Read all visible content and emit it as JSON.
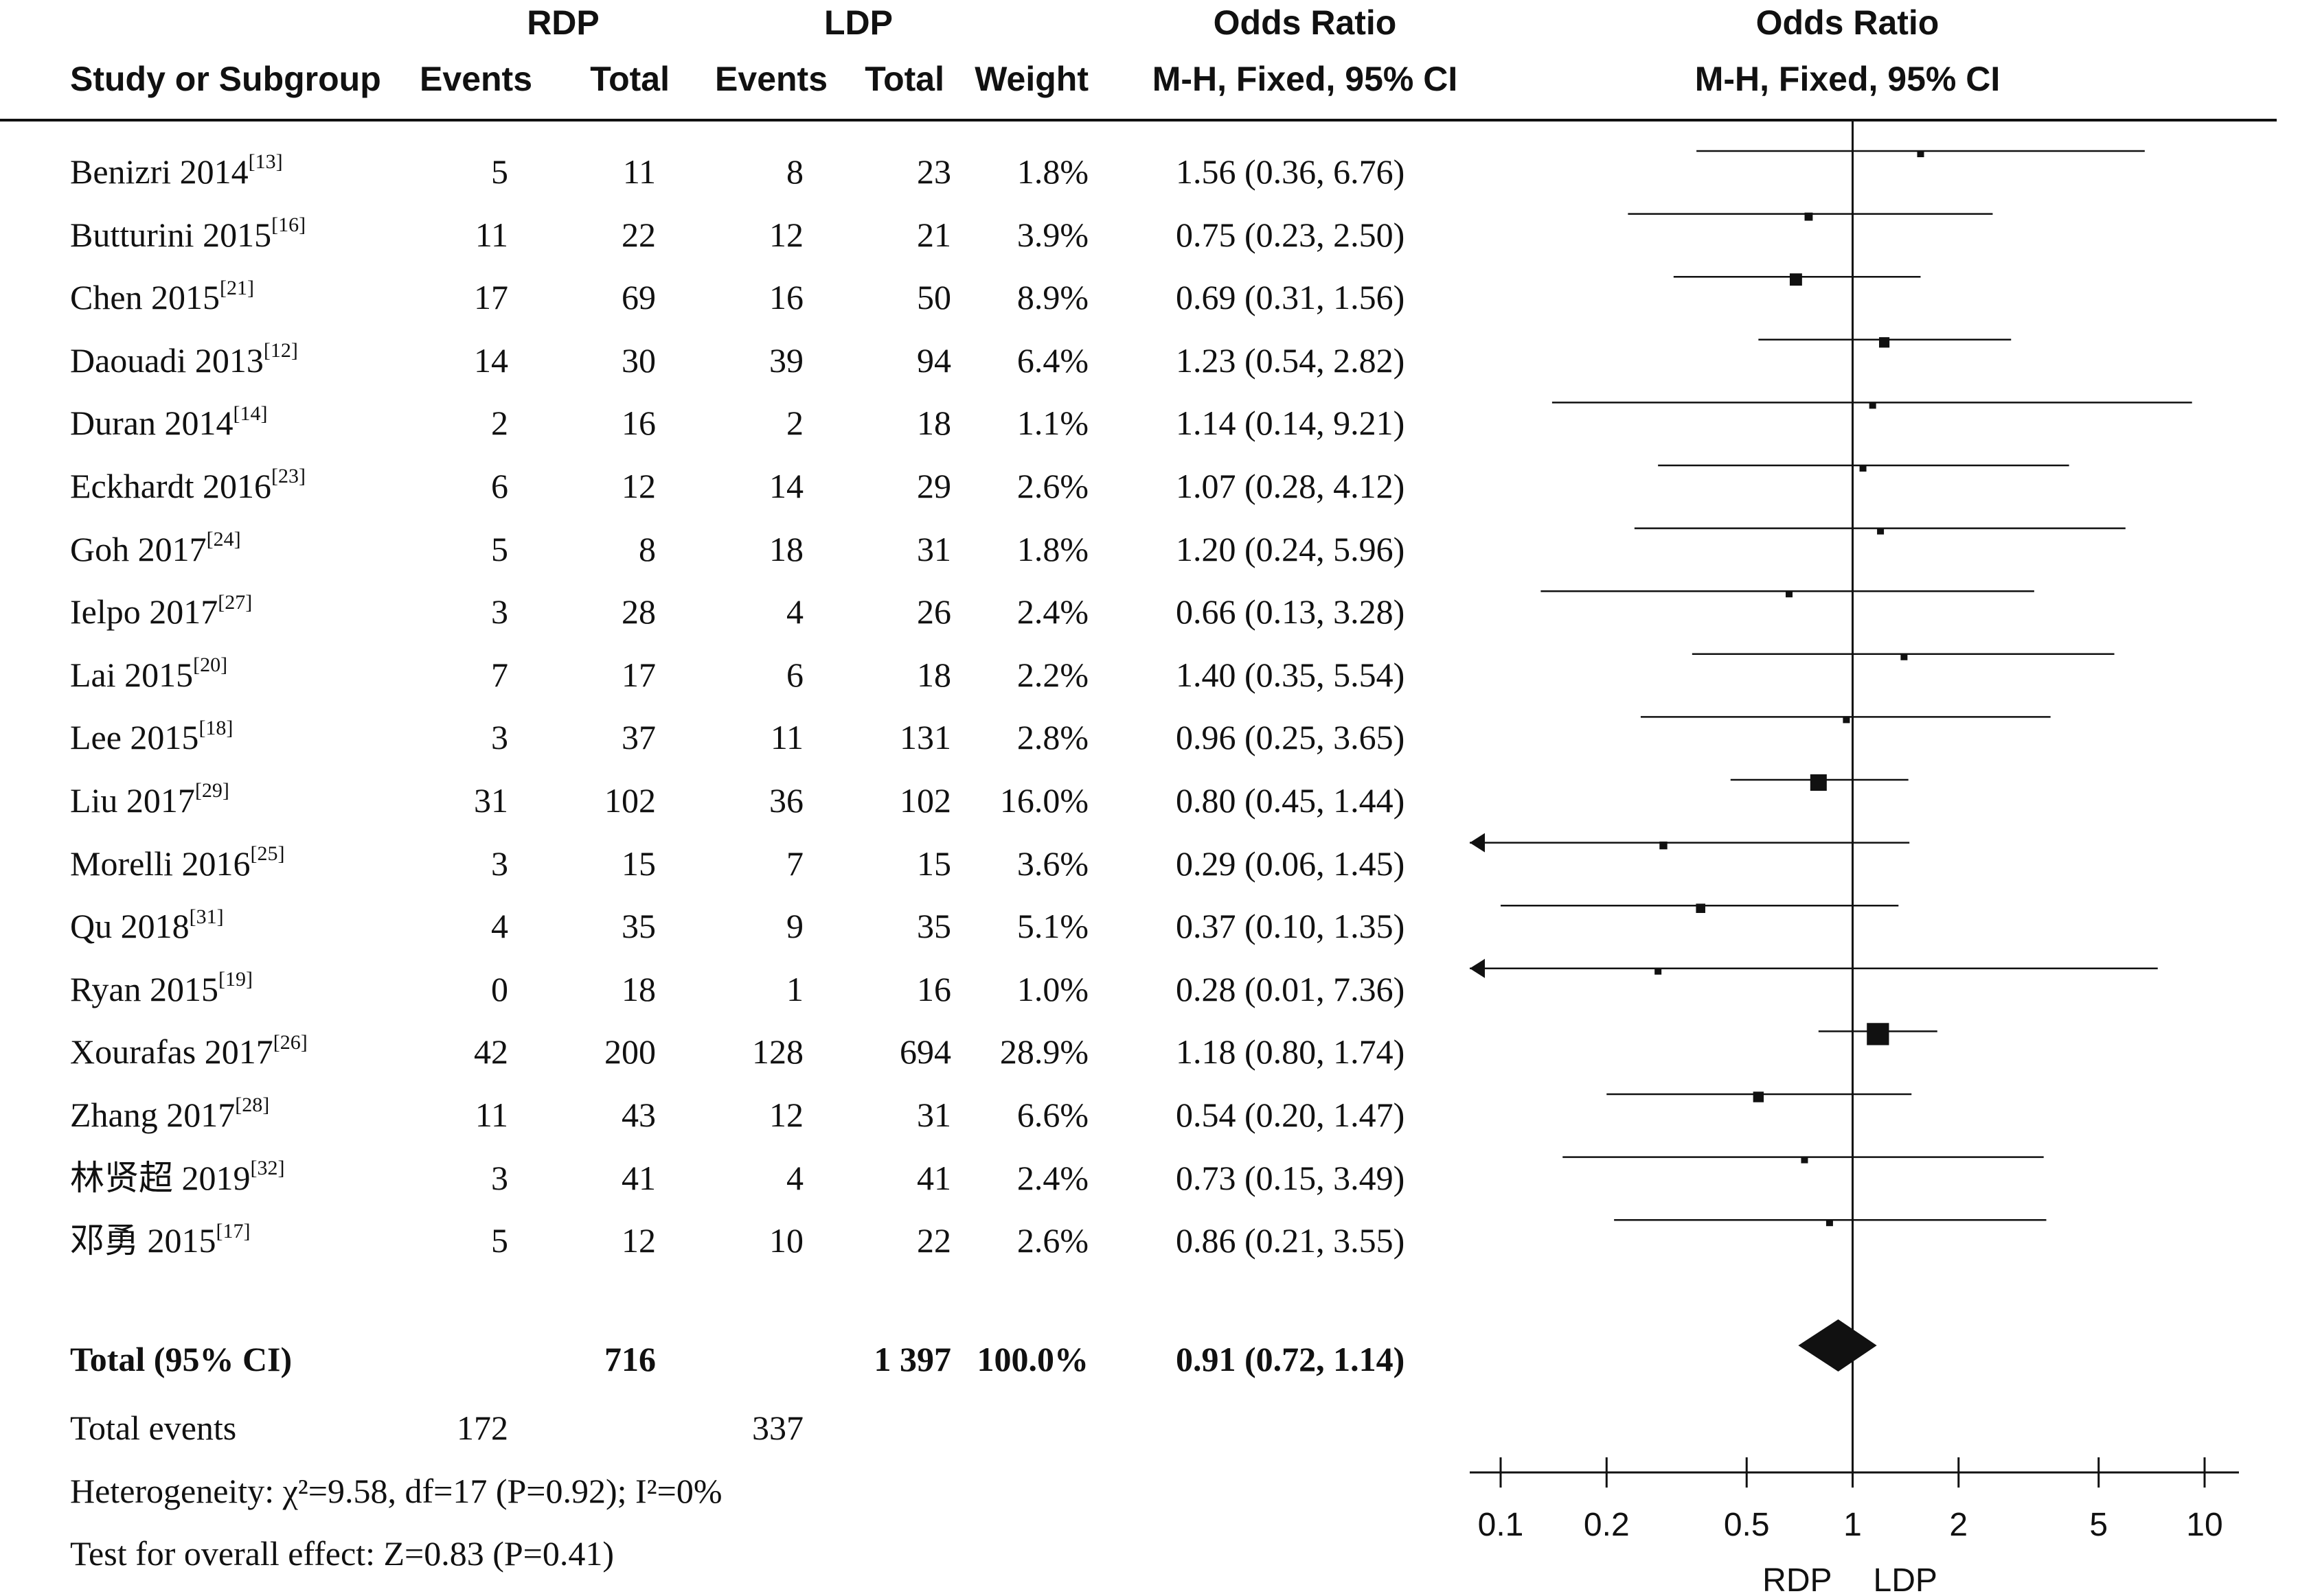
{
  "header": {
    "rdp_group": "RDP",
    "ldp_group": "LDP",
    "col_study": "Study or Subgroup",
    "col_rdp_events": "Events",
    "col_rdp_total": "Total",
    "col_ldp_events": "Events",
    "col_ldp_total": "Total",
    "col_weight": "Weight",
    "or_title": "Odds Ratio",
    "or_method": "M-H, Fixed, 95% CI",
    "plot_title": "Odds Ratio",
    "plot_method": "M-H, Fixed, 95% CI"
  },
  "studies": [
    {
      "name": "Benizri 2014",
      "ref": "[13]",
      "rdp_events": "5",
      "rdp_total": "11",
      "ldp_events": "8",
      "ldp_total": "23",
      "weight": "1.8%",
      "ci_text": "1.56 (0.36, 6.76)"
    },
    {
      "name": "Butturini 2015",
      "ref": "[16]",
      "rdp_events": "11",
      "rdp_total": "22",
      "ldp_events": "12",
      "ldp_total": "21",
      "weight": "3.9%",
      "ci_text": "0.75 (0.23, 2.50)"
    },
    {
      "name": "Chen 2015",
      "ref": "[21]",
      "rdp_events": "17",
      "rdp_total": "69",
      "ldp_events": "16",
      "ldp_total": "50",
      "weight": "8.9%",
      "ci_text": "0.69 (0.31, 1.56)"
    },
    {
      "name": "Daouadi 2013",
      "ref": "[12]",
      "rdp_events": "14",
      "rdp_total": "30",
      "ldp_events": "39",
      "ldp_total": "94",
      "weight": "6.4%",
      "ci_text": "1.23 (0.54, 2.82)"
    },
    {
      "name": "Duran 2014",
      "ref": "[14]",
      "rdp_events": "2",
      "rdp_total": "16",
      "ldp_events": "2",
      "ldp_total": "18",
      "weight": "1.1%",
      "ci_text": "1.14 (0.14, 9.21)"
    },
    {
      "name": "Eckhardt 2016",
      "ref": "[23]",
      "rdp_events": "6",
      "rdp_total": "12",
      "ldp_events": "14",
      "ldp_total": "29",
      "weight": "2.6%",
      "ci_text": "1.07 (0.28, 4.12)"
    },
    {
      "name": "Goh 2017",
      "ref": "[24]",
      "rdp_events": "5",
      "rdp_total": "8",
      "ldp_events": "18",
      "ldp_total": "31",
      "weight": "1.8%",
      "ci_text": "1.20 (0.24, 5.96)"
    },
    {
      "name": "Ielpo 2017",
      "ref": "[27]",
      "rdp_events": "3",
      "rdp_total": "28",
      "ldp_events": "4",
      "ldp_total": "26",
      "weight": "2.4%",
      "ci_text": "0.66 (0.13, 3.28)"
    },
    {
      "name": "Lai 2015",
      "ref": "[20]",
      "rdp_events": "7",
      "rdp_total": "17",
      "ldp_events": "6",
      "ldp_total": "18",
      "weight": "2.2%",
      "ci_text": "1.40 (0.35, 5.54)"
    },
    {
      "name": "Lee 2015",
      "ref": "[18]",
      "rdp_events": "3",
      "rdp_total": "37",
      "ldp_events": "11",
      "ldp_total": "131",
      "weight": "2.8%",
      "ci_text": "0.96 (0.25, 3.65)"
    },
    {
      "name": "Liu 2017",
      "ref": "[29]",
      "rdp_events": "31",
      "rdp_total": "102",
      "ldp_events": "36",
      "ldp_total": "102",
      "weight": "16.0%",
      "ci_text": "0.80 (0.45, 1.44)"
    },
    {
      "name": "Morelli 2016",
      "ref": "[25]",
      "rdp_events": "3",
      "rdp_total": "15",
      "ldp_events": "7",
      "ldp_total": "15",
      "weight": "3.6%",
      "ci_text": "0.29 (0.06, 1.45)"
    },
    {
      "name": "Qu 2018",
      "ref": "[31]",
      "rdp_events": "4",
      "rdp_total": "35",
      "ldp_events": "9",
      "ldp_total": "35",
      "weight": "5.1%",
      "ci_text": "0.37 (0.10, 1.35)"
    },
    {
      "name": "Ryan 2015",
      "ref": "[19]",
      "rdp_events": "0",
      "rdp_total": "18",
      "ldp_events": "1",
      "ldp_total": "16",
      "weight": "1.0%",
      "ci_text": "0.28 (0.01, 7.36)"
    },
    {
      "name": "Xourafas 2017",
      "ref": "[26]",
      "rdp_events": "42",
      "rdp_total": "200",
      "ldp_events": "128",
      "ldp_total": "694",
      "weight": "28.9%",
      "ci_text": "1.18 (0.80, 1.74)"
    },
    {
      "name": "Zhang 2017",
      "ref": "[28]",
      "rdp_events": "11",
      "rdp_total": "43",
      "ldp_events": "12",
      "ldp_total": "31",
      "weight": "6.6%",
      "ci_text": "0.54 (0.20, 1.47)"
    },
    {
      "name": "林贤超 2019",
      "ref": "[32]",
      "rdp_events": "3",
      "rdp_total": "41",
      "ldp_events": "4",
      "ldp_total": "41",
      "weight": "2.4%",
      "ci_text": "0.73 (0.15, 3.49)"
    },
    {
      "name": "邓勇 2015",
      "ref": "[17]",
      "rdp_events": "5",
      "rdp_total": "12",
      "ldp_events": "10",
      "ldp_total": "22",
      "weight": "2.6%",
      "ci_text": "0.86 (0.21, 3.55)"
    }
  ],
  "total": {
    "label": "Total (95% CI)",
    "rdp_total": "716",
    "ldp_total": "1 397",
    "weight": "100.0%",
    "ci_text": "0.91 (0.72, 1.14)"
  },
  "footer": {
    "events_label": "Total events",
    "rdp_events": "172",
    "ldp_events": "337",
    "heterogeneity": "Heterogeneity: χ²=9.58, df=17 (P=0.92); I²=0%",
    "overall": "Test for overall effect: Z=0.83 (P=0.41)"
  },
  "chart_data": {
    "type": "forest",
    "x_scale": "log",
    "xlim": [
      0.1,
      10
    ],
    "ticks": [
      0.1,
      0.2,
      0.5,
      1,
      2,
      5,
      10
    ],
    "tick_labels": [
      "0.1",
      "0.2",
      "0.5",
      "1",
      "2",
      "5",
      "10"
    ],
    "favours_left": "RDP",
    "favours_right": "LDP",
    "studies": [
      {
        "name": "Benizri 2014",
        "or": 1.56,
        "lo": 0.36,
        "hi": 6.76,
        "weight": 1.8
      },
      {
        "name": "Butturini 2015",
        "or": 0.75,
        "lo": 0.23,
        "hi": 2.5,
        "weight": 3.9
      },
      {
        "name": "Chen 2015",
        "or": 0.69,
        "lo": 0.31,
        "hi": 1.56,
        "weight": 8.9
      },
      {
        "name": "Daouadi 2013",
        "or": 1.23,
        "lo": 0.54,
        "hi": 2.82,
        "weight": 6.4
      },
      {
        "name": "Duran 2014",
        "or": 1.14,
        "lo": 0.14,
        "hi": 9.21,
        "weight": 1.1
      },
      {
        "name": "Eckhardt 2016",
        "or": 1.07,
        "lo": 0.28,
        "hi": 4.12,
        "weight": 2.6
      },
      {
        "name": "Goh 2017",
        "or": 1.2,
        "lo": 0.24,
        "hi": 5.96,
        "weight": 1.8
      },
      {
        "name": "Ielpo 2017",
        "or": 0.66,
        "lo": 0.13,
        "hi": 3.28,
        "weight": 2.4
      },
      {
        "name": "Lai 2015",
        "or": 1.4,
        "lo": 0.35,
        "hi": 5.54,
        "weight": 2.2
      },
      {
        "name": "Lee 2015",
        "or": 0.96,
        "lo": 0.25,
        "hi": 3.65,
        "weight": 2.8
      },
      {
        "name": "Liu 2017",
        "or": 0.8,
        "lo": 0.45,
        "hi": 1.44,
        "weight": 16.0
      },
      {
        "name": "Morelli 2016",
        "or": 0.29,
        "lo": 0.06,
        "hi": 1.45,
        "weight": 3.6
      },
      {
        "name": "Qu 2018",
        "or": 0.37,
        "lo": 0.1,
        "hi": 1.35,
        "weight": 5.1
      },
      {
        "name": "Ryan 2015",
        "or": 0.28,
        "lo": 0.01,
        "hi": 7.36,
        "weight": 1.0
      },
      {
        "name": "Xourafas 2017",
        "or": 1.18,
        "lo": 0.8,
        "hi": 1.74,
        "weight": 28.9
      },
      {
        "name": "Zhang 2017",
        "or": 0.54,
        "lo": 0.2,
        "hi": 1.47,
        "weight": 6.6
      },
      {
        "name": "林贤超 2019",
        "or": 0.73,
        "lo": 0.15,
        "hi": 3.49,
        "weight": 2.4
      },
      {
        "name": "邓勇 2015",
        "or": 0.86,
        "lo": 0.21,
        "hi": 3.55,
        "weight": 2.6
      }
    ],
    "pooled": {
      "or": 0.91,
      "lo": 0.72,
      "hi": 1.14
    }
  }
}
